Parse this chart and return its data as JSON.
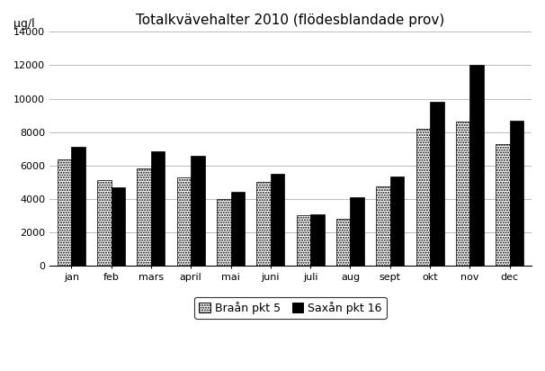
{
  "title": "Totalkvävehalter 2010 (flödesblandade prov)",
  "ylabel": "μg/l",
  "categories": [
    "jan",
    "feb",
    "mars",
    "april",
    "mai",
    "juni",
    "juli",
    "aug",
    "sept",
    "okt",
    "nov",
    "dec"
  ],
  "braaan": [
    6350,
    5100,
    5850,
    5300,
    4000,
    5000,
    3050,
    2800,
    4750,
    8200,
    8650,
    7300
  ],
  "saxan": [
    7100,
    4700,
    6850,
    6600,
    4450,
    5500,
    3100,
    4100,
    5350,
    9800,
    12000,
    8700
  ],
  "braaan_label": "Braån pkt 5",
  "saxan_label": "Saxån pkt 16",
  "ylim": [
    0,
    14000
  ],
  "yticks": [
    0,
    2000,
    4000,
    6000,
    8000,
    10000,
    12000,
    14000
  ],
  "bar_width": 0.35,
  "braaan_color": "#ffffff",
  "braaan_hatch": "......",
  "saxan_color": "#000000",
  "background_color": "#ffffff",
  "grid_color": "#bbbbbb",
  "title_fontsize": 11,
  "tick_fontsize": 8,
  "legend_fontsize": 9
}
